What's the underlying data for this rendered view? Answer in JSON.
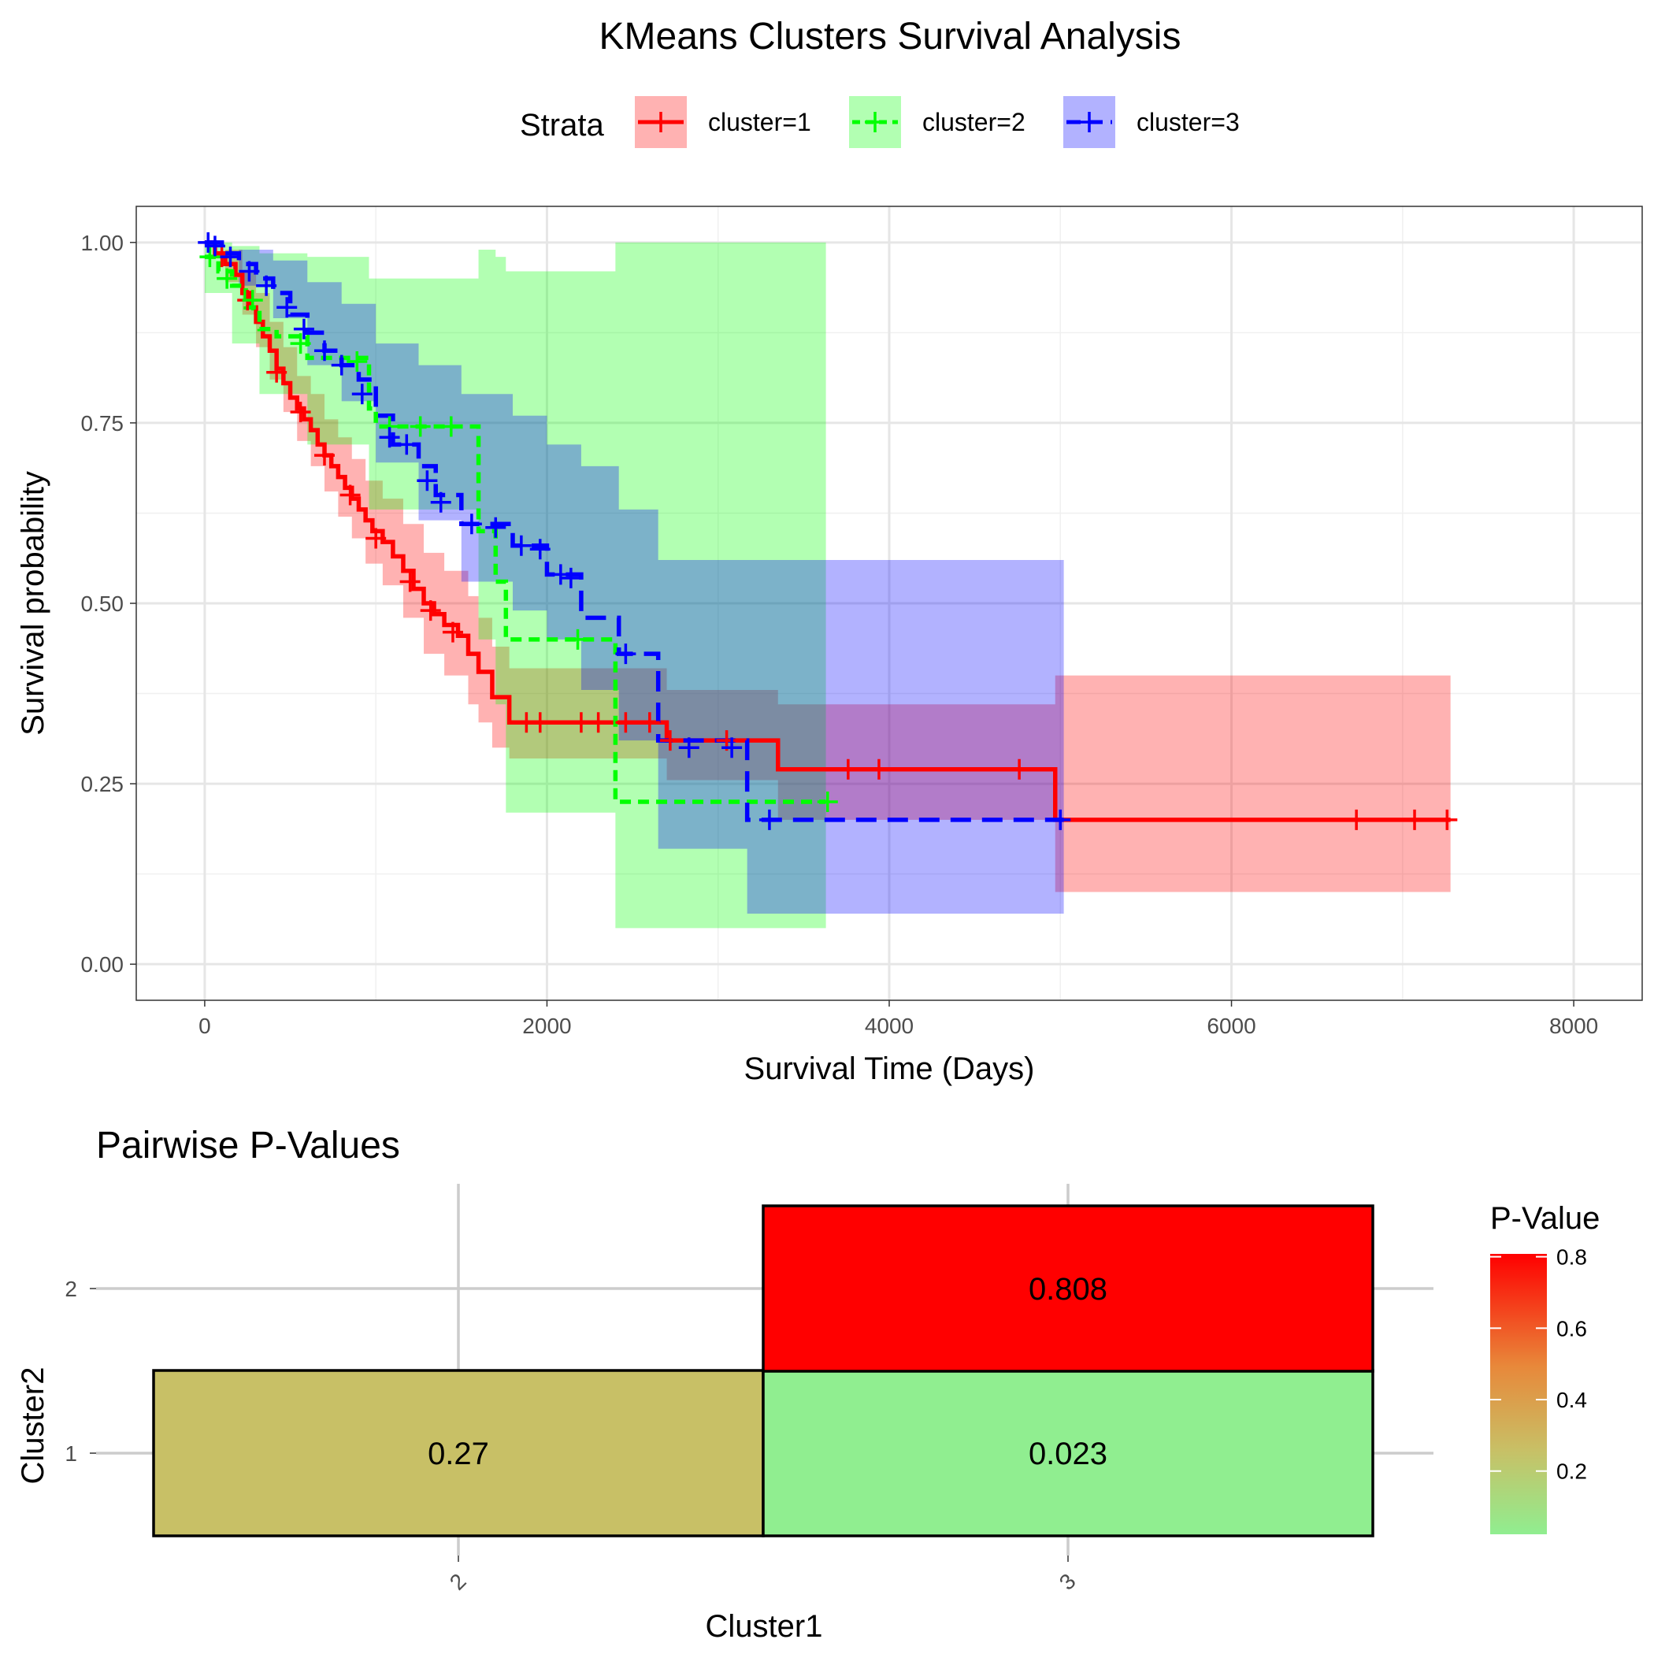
{
  "chart_data": [
    {
      "type": "line",
      "subtype": "kaplan-meier",
      "title": "KMeans Clusters Survival Analysis",
      "xlabel": "Survival Time (Days)",
      "ylabel": "Survival probability",
      "xlim": [
        -400,
        8400
      ],
      "ylim": [
        -0.05,
        1.05
      ],
      "xticks": [
        0,
        2000,
        4000,
        6000,
        8000
      ],
      "xtick_labels": [
        "0",
        "2000",
        "4000",
        "6000",
        "8000"
      ],
      "yticks": [
        0,
        0.25,
        0.5,
        0.75,
        1
      ],
      "ytick_labels": [
        "0.00",
        "0.25",
        "0.50",
        "0.75",
        "1.00"
      ],
      "grid": true,
      "legend": {
        "title": "Strata",
        "placement": "top"
      },
      "series": [
        {
          "name": "cluster=1",
          "color": "#ff0000",
          "dash": "solid",
          "steps": [
            [
              0,
              1.0
            ],
            [
              60,
              0.985
            ],
            [
              120,
              0.97
            ],
            [
              180,
              0.955
            ],
            [
              220,
              0.93
            ],
            [
              260,
              0.91
            ],
            [
              300,
              0.89
            ],
            [
              340,
              0.87
            ],
            [
              380,
              0.85
            ],
            [
              420,
              0.825
            ],
            [
              460,
              0.805
            ],
            [
              500,
              0.785
            ],
            [
              540,
              0.77
            ],
            [
              580,
              0.755
            ],
            [
              620,
              0.74
            ],
            [
              660,
              0.72
            ],
            [
              700,
              0.705
            ],
            [
              740,
              0.69
            ],
            [
              780,
              0.675
            ],
            [
              820,
              0.66
            ],
            [
              860,
              0.645
            ],
            [
              900,
              0.63
            ],
            [
              940,
              0.615
            ],
            [
              980,
              0.6
            ],
            [
              1040,
              0.585
            ],
            [
              1100,
              0.565
            ],
            [
              1160,
              0.545
            ],
            [
              1220,
              0.52
            ],
            [
              1280,
              0.5
            ],
            [
              1340,
              0.485
            ],
            [
              1400,
              0.47
            ],
            [
              1480,
              0.455
            ],
            [
              1540,
              0.43
            ],
            [
              1600,
              0.405
            ],
            [
              1680,
              0.37
            ],
            [
              1780,
              0.335
            ],
            [
              2700,
              0.31
            ],
            [
              3350,
              0.27
            ],
            [
              4970,
              0.2
            ],
            [
              7280,
              0.2
            ]
          ],
          "ci": [
            [
              0,
              1.0,
              1.0
            ],
            [
              120,
              0.945,
              0.99
            ],
            [
              220,
              0.9,
              0.96
            ],
            [
              300,
              0.855,
              0.93
            ],
            [
              380,
              0.81,
              0.89
            ],
            [
              460,
              0.765,
              0.855
            ],
            [
              540,
              0.725,
              0.815
            ],
            [
              620,
              0.69,
              0.79
            ],
            [
              700,
              0.655,
              0.755
            ],
            [
              780,
              0.62,
              0.73
            ],
            [
              860,
              0.59,
              0.7
            ],
            [
              940,
              0.555,
              0.67
            ],
            [
              1040,
              0.525,
              0.645
            ],
            [
              1160,
              0.48,
              0.61
            ],
            [
              1280,
              0.43,
              0.57
            ],
            [
              1400,
              0.4,
              0.545
            ],
            [
              1540,
              0.36,
              0.51
            ],
            [
              1600,
              0.335,
              0.48
            ],
            [
              1680,
              0.3,
              0.44
            ],
            [
              1780,
              0.285,
              0.41
            ],
            [
              2700,
              0.255,
              0.38
            ],
            [
              3350,
              0.2,
              0.36
            ],
            [
              4970,
              0.1,
              0.4
            ],
            [
              7280,
              0.1,
              0.4
            ]
          ],
          "censored": [
            [
              100,
              0.98
            ],
            [
              250,
              0.92
            ],
            [
              420,
              0.82
            ],
            [
              560,
              0.765
            ],
            [
              700,
              0.705
            ],
            [
              850,
              0.65
            ],
            [
              1000,
              0.59
            ],
            [
              1200,
              0.53
            ],
            [
              1320,
              0.49
            ],
            [
              1450,
              0.46
            ],
            [
              1880,
              0.335
            ],
            [
              1960,
              0.335
            ],
            [
              2200,
              0.335
            ],
            [
              2300,
              0.335
            ],
            [
              2460,
              0.335
            ],
            [
              2600,
              0.335
            ],
            [
              2720,
              0.31
            ],
            [
              3050,
              0.31
            ],
            [
              3760,
              0.27
            ],
            [
              3940,
              0.27
            ],
            [
              4760,
              0.27
            ],
            [
              6730,
              0.2
            ],
            [
              7070,
              0.2
            ],
            [
              7260,
              0.2
            ]
          ]
        },
        {
          "name": "cluster=2",
          "color": "#00ff00",
          "dash": "dotted",
          "steps": [
            [
              0,
              0.98
            ],
            [
              80,
              0.96
            ],
            [
              160,
              0.94
            ],
            [
              240,
              0.91
            ],
            [
              320,
              0.88
            ],
            [
              420,
              0.87
            ],
            [
              600,
              0.84
            ],
            [
              960,
              0.77
            ],
            [
              1000,
              0.745
            ],
            [
              1600,
              0.6
            ],
            [
              1700,
              0.53
            ],
            [
              1760,
              0.45
            ],
            [
              2400,
              0.225
            ],
            [
              3630,
              0.225
            ]
          ],
          "ci": [
            [
              0,
              0.93,
              1.0
            ],
            [
              160,
              0.86,
              0.995
            ],
            [
              320,
              0.79,
              0.985
            ],
            [
              600,
              0.72,
              0.98
            ],
            [
              960,
              0.63,
              0.95
            ],
            [
              1600,
              0.45,
              0.99
            ],
            [
              1700,
              0.36,
              0.98
            ],
            [
              1760,
              0.21,
              0.96
            ],
            [
              2400,
              0.05,
              1.0
            ],
            [
              3630,
              0.05,
              1.0
            ]
          ],
          "censored": [
            [
              30,
              0.98
            ],
            [
              130,
              0.95
            ],
            [
              280,
              0.92
            ],
            [
              560,
              0.86
            ],
            [
              890,
              0.835
            ],
            [
              1080,
              0.745
            ],
            [
              1260,
              0.745
            ],
            [
              1440,
              0.745
            ],
            [
              2180,
              0.45
            ],
            [
              3640,
              0.225
            ]
          ]
        },
        {
          "name": "cluster=3",
          "color": "#0000ff",
          "dash": "dashed",
          "steps": [
            [
              0,
              1.0
            ],
            [
              100,
              0.985
            ],
            [
              200,
              0.97
            ],
            [
              300,
              0.95
            ],
            [
              400,
              0.93
            ],
            [
              500,
              0.9
            ],
            [
              600,
              0.875
            ],
            [
              700,
              0.85
            ],
            [
              800,
              0.83
            ],
            [
              900,
              0.81
            ],
            [
              1000,
              0.76
            ],
            [
              1100,
              0.72
            ],
            [
              1250,
              0.69
            ],
            [
              1350,
              0.65
            ],
            [
              1500,
              0.61
            ],
            [
              1800,
              0.58
            ],
            [
              2000,
              0.54
            ],
            [
              2200,
              0.48
            ],
            [
              2420,
              0.43
            ],
            [
              2650,
              0.31
            ],
            [
              3170,
              0.2
            ],
            [
              5020,
              0.2
            ]
          ],
          "ci": [
            [
              0,
              1.0,
              1.0
            ],
            [
              200,
              0.94,
              0.99
            ],
            [
              400,
              0.895,
              0.975
            ],
            [
              600,
              0.83,
              0.945
            ],
            [
              800,
              0.78,
              0.915
            ],
            [
              1000,
              0.695,
              0.86
            ],
            [
              1250,
              0.615,
              0.83
            ],
            [
              1500,
              0.53,
              0.79
            ],
            [
              1800,
              0.49,
              0.76
            ],
            [
              2000,
              0.45,
              0.72
            ],
            [
              2200,
              0.38,
              0.69
            ],
            [
              2420,
              0.31,
              0.63
            ],
            [
              2650,
              0.16,
              0.56
            ],
            [
              3170,
              0.07,
              0.56
            ],
            [
              5020,
              0.07,
              0.56
            ]
          ],
          "censored": [
            [
              20,
              1.0
            ],
            [
              60,
              0.995
            ],
            [
              150,
              0.98
            ],
            [
              260,
              0.96
            ],
            [
              360,
              0.94
            ],
            [
              480,
              0.91
            ],
            [
              580,
              0.88
            ],
            [
              700,
              0.85
            ],
            [
              800,
              0.83
            ],
            [
              920,
              0.79
            ],
            [
              1080,
              0.73
            ],
            [
              1180,
              0.72
            ],
            [
              1300,
              0.67
            ],
            [
              1380,
              0.64
            ],
            [
              1560,
              0.61
            ],
            [
              1700,
              0.605
            ],
            [
              1850,
              0.58
            ],
            [
              1960,
              0.575
            ],
            [
              2080,
              0.54
            ],
            [
              2140,
              0.535
            ],
            [
              2460,
              0.43
            ],
            [
              2830,
              0.3
            ],
            [
              3080,
              0.3
            ],
            [
              3300,
              0.2
            ],
            [
              5000,
              0.2
            ]
          ]
        }
      ]
    },
    {
      "type": "heatmap",
      "title": "Pairwise P-Values",
      "xlabel": "Cluster1",
      "ylabel": "Cluster2",
      "x_categories": [
        "2",
        "3"
      ],
      "y_categories": [
        "1",
        "2"
      ],
      "cells": [
        {
          "x": "2",
          "y": "1",
          "value": 0.27,
          "label": "0.27",
          "color": "#c8c066"
        },
        {
          "x": "3",
          "y": "1",
          "value": 0.023,
          "label": "0.023",
          "color": "#90ee90"
        },
        {
          "x": "3",
          "y": "2",
          "value": 0.808,
          "label": "0.808",
          "color": "#ff0000"
        }
      ],
      "colorbar": {
        "title": "P-Value",
        "range": [
          0.023,
          0.808
        ],
        "ticks": [
          0.2,
          0.4,
          0.6,
          0.8
        ],
        "tick_labels": [
          "0.2",
          "0.4",
          "0.6",
          "0.8"
        ],
        "low_color": "#90ee90",
        "high_color": "#ff0000"
      }
    }
  ]
}
